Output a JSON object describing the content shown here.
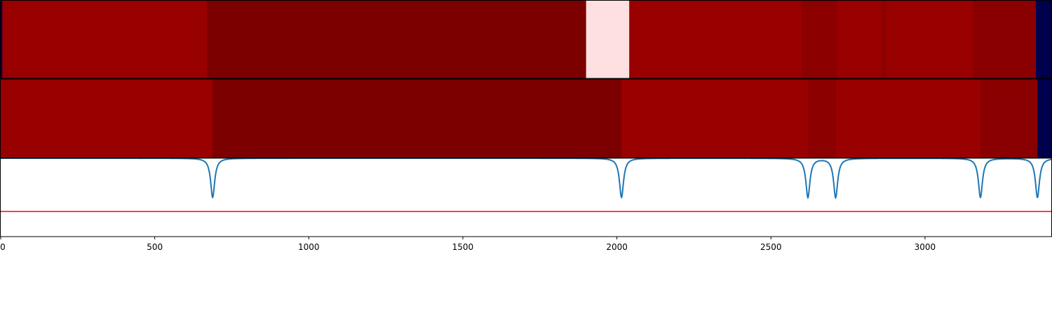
{
  "chart_data": [
    {
      "type": "heatmap",
      "panel": "top",
      "xlim": [
        0,
        3410
      ],
      "segments": [
        {
          "start": 0,
          "end": 5,
          "color": "#00004c"
        },
        {
          "start": 5,
          "end": 670,
          "color": "#990000"
        },
        {
          "start": 670,
          "end": 1900,
          "color": "#7c0000"
        },
        {
          "start": 1900,
          "end": 2040,
          "color": "#ffe0e0"
        },
        {
          "start": 2040,
          "end": 2600,
          "color": "#990000"
        },
        {
          "start": 2600,
          "end": 2715,
          "color": "#8c0000"
        },
        {
          "start": 2715,
          "end": 2860,
          "color": "#990000"
        },
        {
          "start": 2860,
          "end": 2875,
          "color": "#8c0000"
        },
        {
          "start": 2875,
          "end": 3155,
          "color": "#990000"
        },
        {
          "start": 3155,
          "end": 3360,
          "color": "#8a0000"
        },
        {
          "start": 3360,
          "end": 3410,
          "color": "#00004c"
        }
      ]
    },
    {
      "type": "heatmap",
      "panel": "middle",
      "xlim": [
        0,
        3410
      ],
      "segments": [
        {
          "start": 0,
          "end": 688,
          "color": "#990000"
        },
        {
          "start": 688,
          "end": 2015,
          "color": "#7c0000"
        },
        {
          "start": 2015,
          "end": 2620,
          "color": "#990000"
        },
        {
          "start": 2620,
          "end": 2710,
          "color": "#8c0000"
        },
        {
          "start": 2710,
          "end": 3180,
          "color": "#990000"
        },
        {
          "start": 3180,
          "end": 3365,
          "color": "#8a0000"
        },
        {
          "start": 3365,
          "end": 3410,
          "color": "#00004c"
        }
      ]
    },
    {
      "type": "line",
      "panel": "bottom",
      "xlim": [
        0,
        3410
      ],
      "ylim": [
        0,
        1
      ],
      "xticks": [
        0,
        500,
        1000,
        1500,
        2000,
        2500,
        3000
      ],
      "xtick_labels": [
        "0",
        "500",
        "1000",
        "1500",
        "2000",
        "2500",
        "3000"
      ],
      "baseline": 1.0,
      "dips": [
        {
          "x": 688,
          "depth": 0.5
        },
        {
          "x": 2015,
          "depth": 0.5
        },
        {
          "x": 2620,
          "depth": 0.5
        },
        {
          "x": 2710,
          "depth": 0.5
        },
        {
          "x": 3180,
          "depth": 0.5
        },
        {
          "x": 3365,
          "depth": 0.5
        }
      ],
      "dip_width": 8,
      "line_color": "#1f77b4",
      "threshold": 0.32,
      "threshold_color": "#ff0000"
    }
  ]
}
